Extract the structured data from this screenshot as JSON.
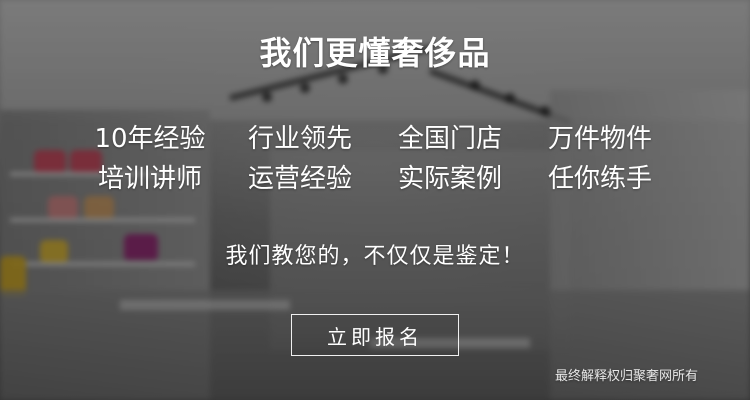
{
  "banner": {
    "title": "我们更懂奢侈品",
    "features": [
      "10年经验",
      "行业领先",
      "全国门店",
      "万件物件",
      "培训讲师",
      "运营经验",
      "实际案例",
      "任你练手"
    ],
    "tagline": "我们教您的，不仅仅是鉴定！",
    "cta_label": "立即报名",
    "footer_note": "最终解释权归聚奢网所有"
  },
  "colors": {
    "text": "#ffffff",
    "overlay": "rgba(0,0,0,0.42)",
    "button_border": "#ffffff"
  }
}
